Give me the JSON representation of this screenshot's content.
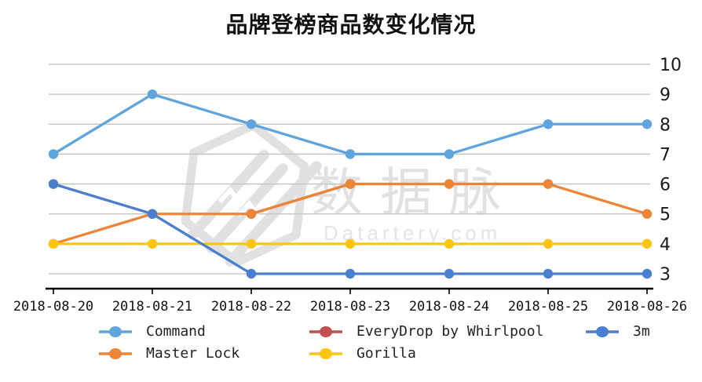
{
  "title": "品牌登榜商品数变化情况",
  "watermark": {
    "cn": "数据脉",
    "en": "Datartery.com"
  },
  "legend": {
    "items": [
      {
        "label": "Command",
        "color": "#5FA4DC"
      },
      {
        "label": "EveryDrop by Whirlpool",
        "color": "#C0504D"
      },
      {
        "label": "3m",
        "color": "#4A7ECE"
      },
      {
        "label": "Master Lock",
        "color": "#ED8537"
      },
      {
        "label": "Gorilla",
        "color": "#FFC510"
      }
    ]
  },
  "chart_data": {
    "type": "line",
    "title": "品牌登榜商品数变化情况",
    "x": [
      "2018-08-20",
      "2018-08-21",
      "2018-08-22",
      "2018-08-23",
      "2018-08-24",
      "2018-08-25",
      "2018-08-26"
    ],
    "y_ticks": [
      10,
      9,
      8,
      7,
      6,
      5,
      4,
      3
    ],
    "ylim": [
      3,
      10
    ],
    "y_axis_side": "right",
    "grid": "horizontal-only",
    "legend_position": "bottom",
    "series": [
      {
        "name": "Command",
        "color": "#5FA4DC",
        "values": [
          7,
          9,
          8,
          7,
          7,
          8,
          8
        ]
      },
      {
        "name": "EveryDrop by Whirlpool",
        "color": "#C0504D",
        "values": [
          null,
          null,
          5,
          6,
          null,
          null,
          null
        ],
        "note": "coincides with Master Lock, mostly hidden"
      },
      {
        "name": "3m",
        "color": "#4A7ECE",
        "values": [
          6,
          5,
          3,
          3,
          3,
          3,
          3
        ]
      },
      {
        "name": "Master Lock",
        "color": "#ED8537",
        "values": [
          4,
          5,
          5,
          6,
          6,
          6,
          5
        ]
      },
      {
        "name": "Gorilla",
        "color": "#FFC510",
        "values": [
          4,
          4,
          4,
          4,
          4,
          4,
          4
        ]
      }
    ],
    "draw_order": [
      "EveryDrop by Whirlpool",
      "Master Lock",
      "Gorilla",
      "Command",
      "3m"
    ]
  }
}
